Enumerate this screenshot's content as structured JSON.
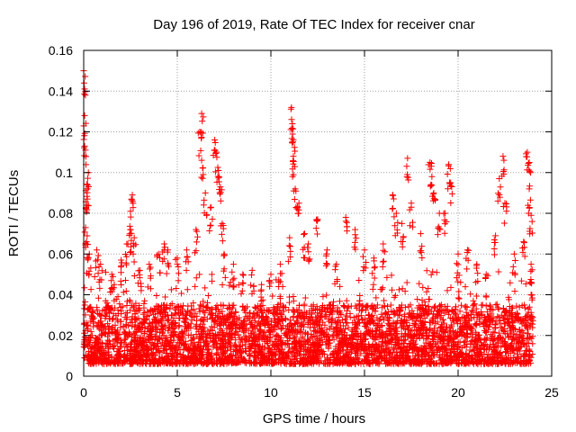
{
  "chart_data": {
    "type": "scatter",
    "title": "Day 196 of 2019, Rate Of TEC Index for receiver cnar",
    "xlabel": "GPS time / hours",
    "ylabel": "ROTI / TECUs",
    "xlim": [
      0,
      25
    ],
    "ylim": [
      0,
      0.16
    ],
    "xticks": [
      "0",
      "5",
      "10",
      "15",
      "20",
      "25"
    ],
    "yticks": [
      "0",
      "0.02",
      "0.04",
      "0.06",
      "0.08",
      "0.1",
      "0.12",
      "0.14",
      "0.16"
    ],
    "grid": true,
    "marker": "plus",
    "color": "#ff0000",
    "series": [
      {
        "points": [
          [
            0.0,
            0.15
          ],
          [
            0.02,
            0.144
          ],
          [
            0.05,
            0.128
          ],
          [
            0.05,
            0.113
          ],
          [
            0.25,
            0.1
          ],
          [
            0.2,
            0.092
          ],
          [
            0.2,
            0.087
          ],
          [
            0.1,
            0.073
          ],
          [
            0.15,
            0.066
          ],
          [
            0.3,
            0.06
          ],
          [
            0.7,
            0.062
          ],
          [
            0.9,
            0.055
          ],
          [
            1.5,
            0.05
          ],
          [
            2.0,
            0.057
          ],
          [
            2.3,
            0.065
          ],
          [
            2.5,
            0.072
          ],
          [
            2.6,
            0.089
          ],
          [
            2.5,
            0.081
          ],
          [
            2.7,
            0.068
          ],
          [
            3.0,
            0.052
          ],
          [
            3.5,
            0.055
          ],
          [
            4.0,
            0.06
          ],
          [
            4.3,
            0.065
          ],
          [
            4.5,
            0.062
          ],
          [
            5.0,
            0.058
          ],
          [
            5.5,
            0.062
          ],
          [
            6.0,
            0.072
          ],
          [
            6.3,
            0.129
          ],
          [
            6.2,
            0.12
          ],
          [
            6.3,
            0.106
          ],
          [
            6.5,
            0.09
          ],
          [
            6.8,
            0.083
          ],
          [
            7.0,
            0.116
          ],
          [
            7.1,
            0.11
          ],
          [
            7.2,
            0.101
          ],
          [
            7.3,
            0.093
          ],
          [
            7.4,
            0.075
          ],
          [
            7.5,
            0.06
          ],
          [
            8.0,
            0.055
          ],
          [
            8.5,
            0.05
          ],
          [
            9.0,
            0.052
          ],
          [
            9.5,
            0.045
          ],
          [
            10.0,
            0.05
          ],
          [
            10.5,
            0.055
          ],
          [
            11.0,
            0.068
          ],
          [
            11.1,
            0.132
          ],
          [
            11.15,
            0.124
          ],
          [
            11.2,
            0.116
          ],
          [
            11.2,
            0.108
          ],
          [
            11.3,
            0.092
          ],
          [
            11.5,
            0.085
          ],
          [
            11.8,
            0.07
          ],
          [
            12.0,
            0.065
          ],
          [
            12.5,
            0.077
          ],
          [
            13.0,
            0.062
          ],
          [
            13.5,
            0.055
          ],
          [
            14.0,
            0.078
          ],
          [
            14.5,
            0.072
          ],
          [
            15.0,
            0.062
          ],
          [
            15.5,
            0.058
          ],
          [
            16.0,
            0.065
          ],
          [
            16.5,
            0.089
          ],
          [
            16.7,
            0.08
          ],
          [
            17.0,
            0.075
          ],
          [
            17.3,
            0.107
          ],
          [
            17.5,
            0.085
          ],
          [
            18.0,
            0.07
          ],
          [
            18.5,
            0.105
          ],
          [
            18.6,
            0.098
          ],
          [
            18.7,
            0.09
          ],
          [
            19.0,
            0.08
          ],
          [
            19.3,
            0.08
          ],
          [
            19.5,
            0.104
          ],
          [
            19.6,
            0.095
          ],
          [
            20.0,
            0.06
          ],
          [
            20.5,
            0.062
          ],
          [
            21.0,
            0.055
          ],
          [
            21.5,
            0.05
          ],
          [
            22.0,
            0.069
          ],
          [
            22.2,
            0.097
          ],
          [
            22.4,
            0.108
          ],
          [
            22.5,
            0.085
          ],
          [
            23.0,
            0.06
          ],
          [
            23.5,
            0.066
          ],
          [
            23.7,
            0.11
          ],
          [
            23.8,
            0.105
          ],
          [
            23.8,
            0.092
          ],
          [
            23.9,
            0.079
          ],
          [
            23.9,
            0.055
          ],
          [
            23.9,
            0.04
          ]
        ],
        "background_band": {
          "x_range": [
            0,
            24
          ],
          "y_typical_low": 0.006,
          "y_typical_high": 0.035
        }
      }
    ]
  }
}
